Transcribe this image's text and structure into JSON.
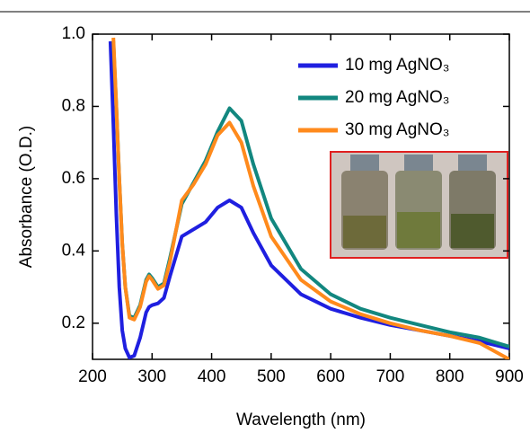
{
  "chart_data": {
    "type": "line",
    "x_label": "Wavelength (nm)",
    "y_label": "Absorbance (O.D.)",
    "x": [
      230,
      235,
      240,
      245,
      250,
      255,
      262,
      270,
      280,
      290,
      295,
      300,
      310,
      320,
      330,
      350,
      370,
      390,
      410,
      430,
      450,
      470,
      500,
      550,
      600,
      650,
      700,
      750,
      800,
      850,
      900
    ],
    "series": [
      {
        "name": "10 mg AgNO₃",
        "color": "#1f1fe0",
        "values": [
          0.98,
          0.75,
          0.5,
          0.3,
          0.18,
          0.13,
          0.105,
          0.11,
          0.16,
          0.23,
          0.245,
          0.25,
          0.255,
          0.27,
          0.33,
          0.44,
          0.46,
          0.48,
          0.52,
          0.54,
          0.52,
          0.45,
          0.36,
          0.28,
          0.24,
          0.215,
          0.195,
          0.18,
          0.165,
          0.15,
          0.13
        ]
      },
      {
        "name": "20 mg AgNO₃",
        "color": "#12877f",
        "values": [
          null,
          0.98,
          0.8,
          0.6,
          0.42,
          0.3,
          0.22,
          0.215,
          0.25,
          0.32,
          0.335,
          0.325,
          0.3,
          0.31,
          0.38,
          0.53,
          0.59,
          0.65,
          0.73,
          0.795,
          0.76,
          0.64,
          0.49,
          0.35,
          0.28,
          0.24,
          0.215,
          0.195,
          0.175,
          0.16,
          0.135
        ]
      },
      {
        "name": "30 mg AgNO₃",
        "color": "#ff8a1c",
        "values": [
          null,
          0.99,
          0.8,
          0.6,
          0.42,
          0.3,
          0.215,
          0.21,
          0.245,
          0.315,
          0.33,
          0.32,
          0.295,
          0.305,
          0.37,
          0.54,
          0.585,
          0.64,
          0.72,
          0.755,
          0.7,
          0.58,
          0.44,
          0.32,
          0.26,
          0.225,
          0.2,
          0.18,
          0.165,
          0.145,
          0.1
        ]
      }
    ],
    "xlim": [
      200,
      900
    ],
    "xticks": [
      200,
      300,
      400,
      500,
      600,
      700,
      800,
      900
    ],
    "ylim": [
      0.1,
      1.0
    ],
    "yticks": [
      0.2,
      0.4,
      0.6,
      0.8,
      {
        "value": 1,
        "label": "1.0"
      }
    ],
    "legend": "upper right"
  }
}
